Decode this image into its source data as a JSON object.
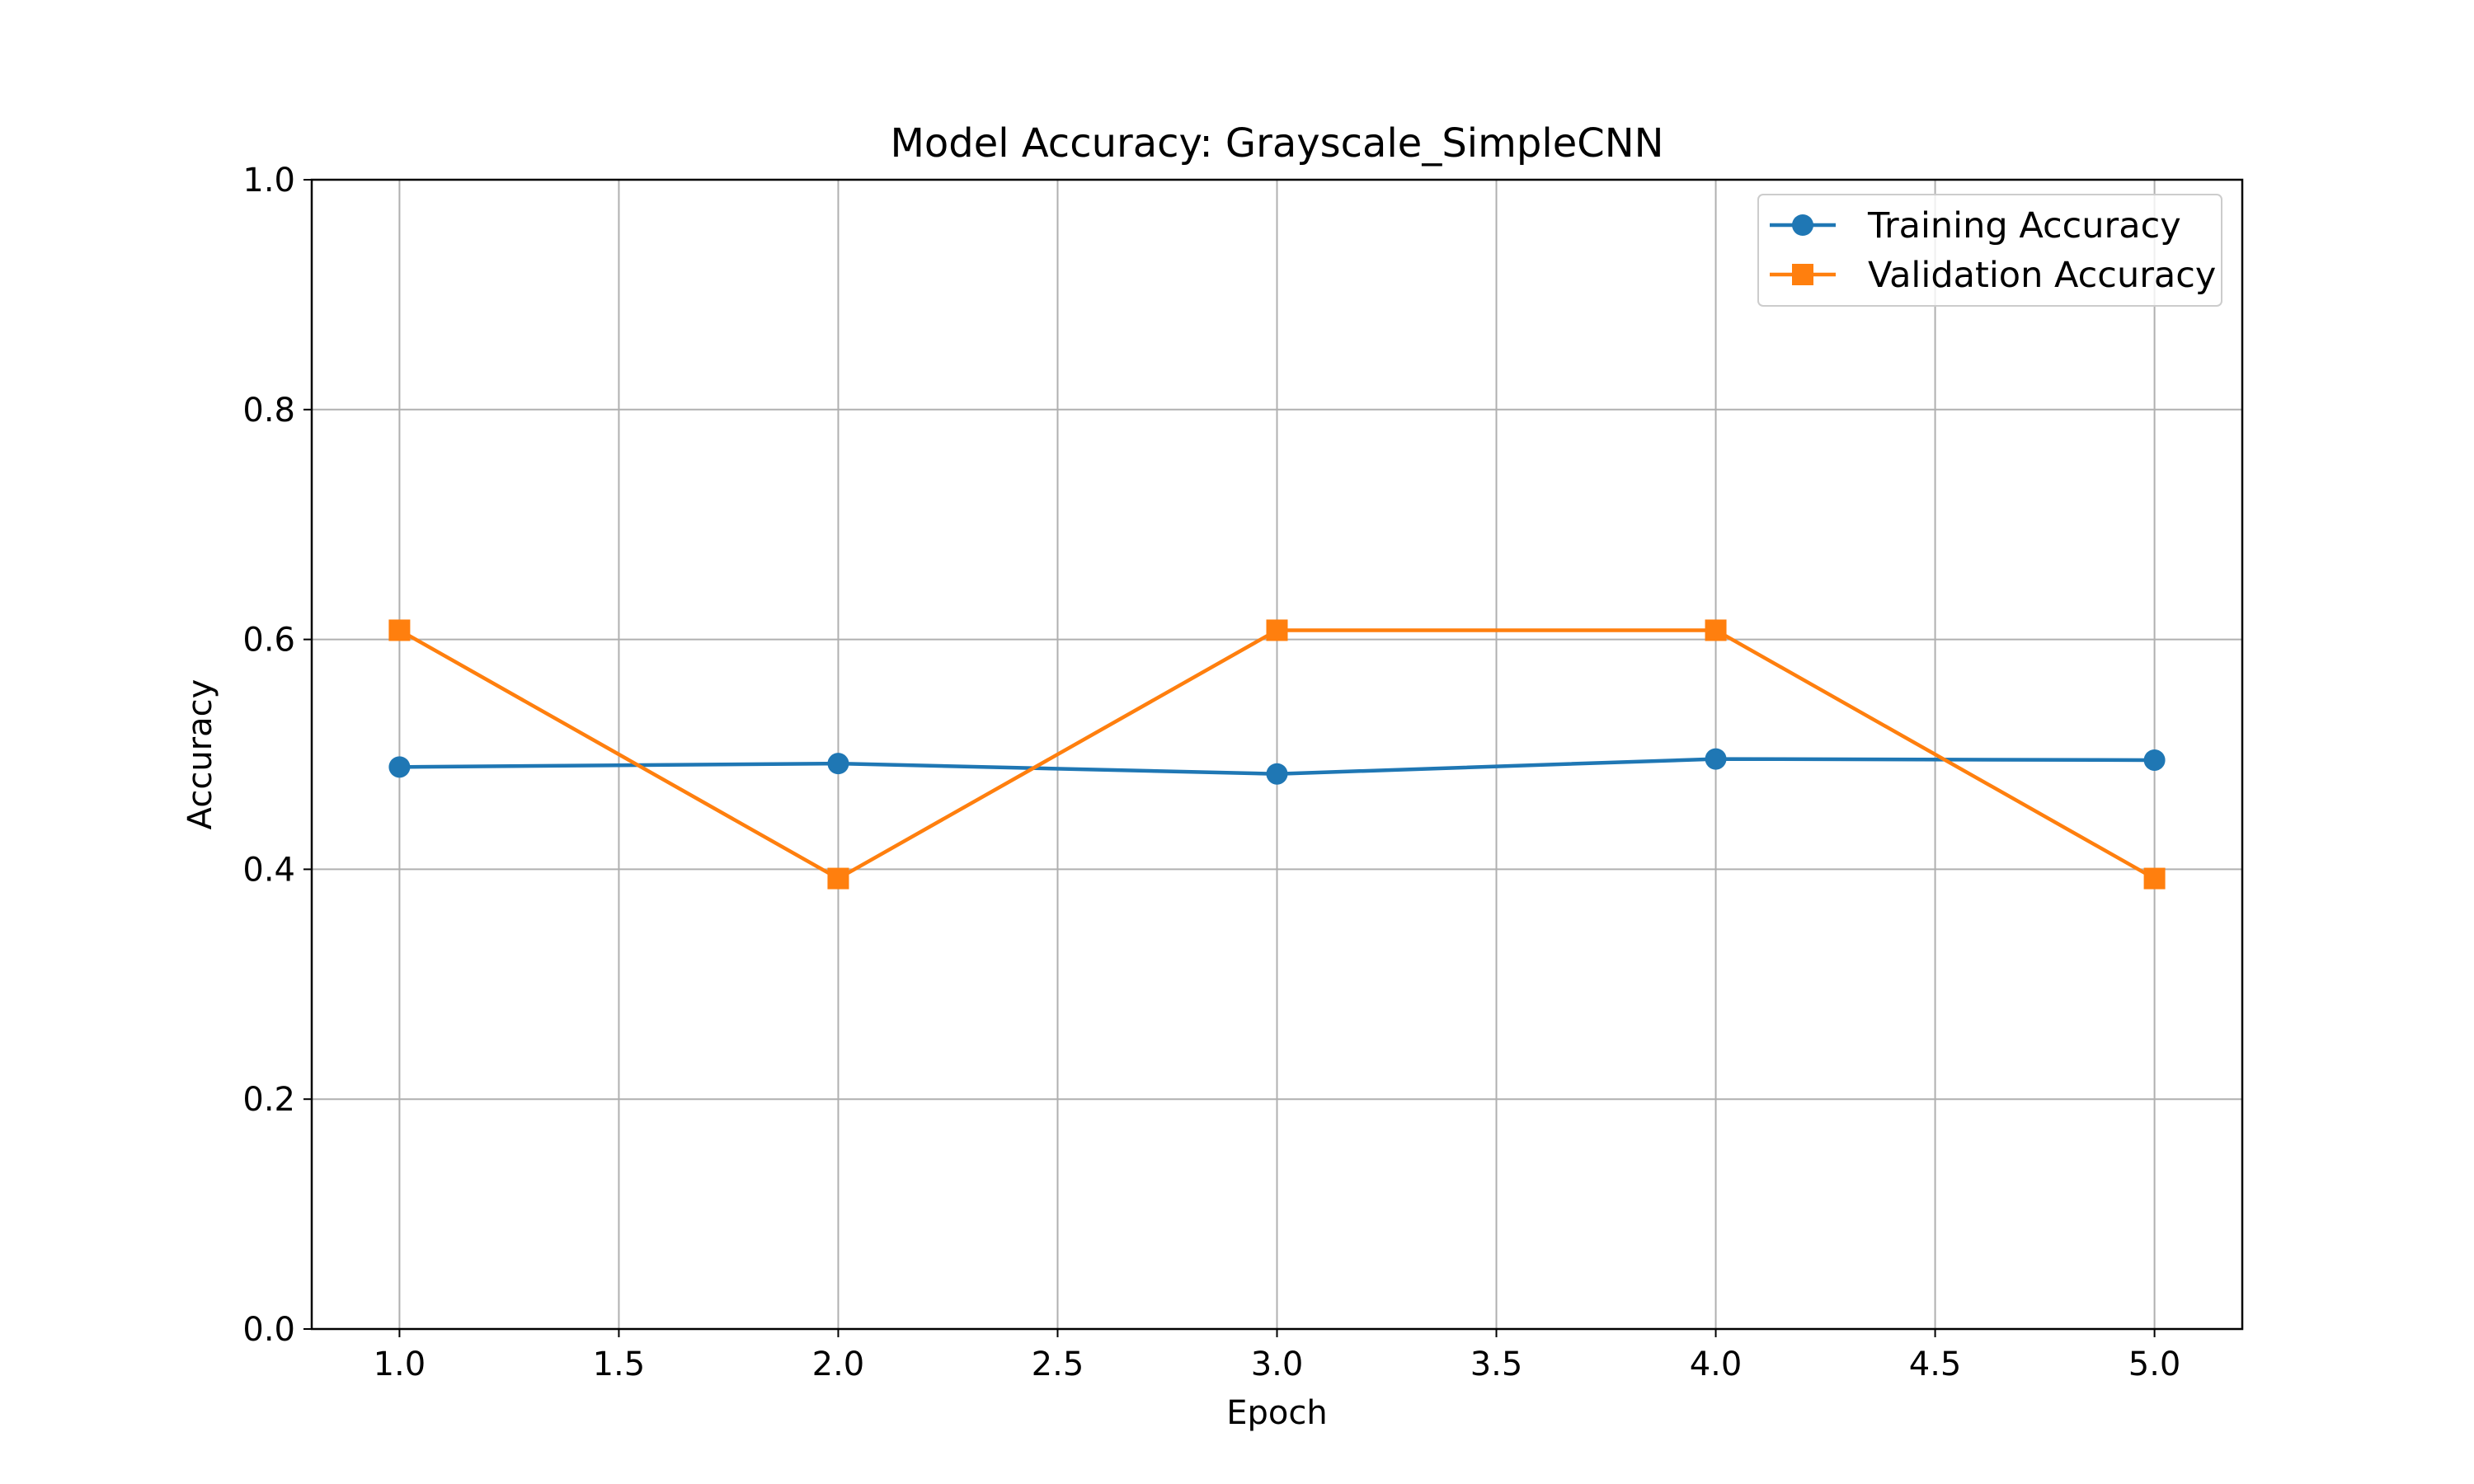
{
  "chart_data": {
    "type": "line",
    "title": "Model Accuracy: Grayscale_SimpleCNN",
    "xlabel": "Epoch",
    "ylabel": "Accuracy",
    "x": [
      1,
      2,
      3,
      4,
      5
    ],
    "xlim": [
      0.8,
      5.2
    ],
    "ylim": [
      0.0,
      1.0
    ],
    "xticks": [
      "1.0",
      "1.5",
      "2.0",
      "2.5",
      "3.0",
      "3.5",
      "4.0",
      "4.5",
      "5.0"
    ],
    "yticks": [
      "0.0",
      "0.2",
      "0.4",
      "0.6",
      "0.8",
      "1.0"
    ],
    "grid": true,
    "legend_position": "top-right",
    "series": [
      {
        "name": "Training Accuracy",
        "values": [
          0.489,
          0.492,
          0.483,
          0.496,
          0.495
        ],
        "color": "#1f77b4",
        "marker": "circle"
      },
      {
        "name": "Validation Accuracy",
        "values": [
          0.608,
          0.392,
          0.608,
          0.608,
          0.392
        ],
        "color": "#ff7f0e",
        "marker": "square"
      }
    ]
  }
}
